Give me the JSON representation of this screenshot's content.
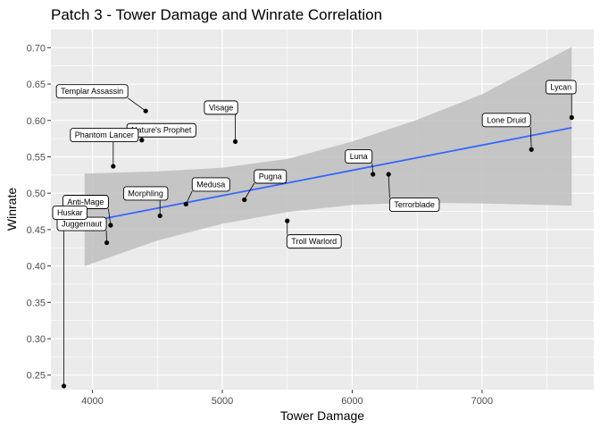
{
  "chart_data": {
    "type": "scatter",
    "title": "Patch 3  - Tower Damage and Winrate Correlation",
    "xlabel": "Tower Damage",
    "ylabel": "Winrate",
    "xlim": [
      3680,
      7860
    ],
    "ylim": [
      0.23,
      0.725
    ],
    "x_ticks": [
      4000,
      5000,
      6000,
      7000
    ],
    "x_tick_labels": [
      "4000",
      "5000",
      "6000",
      "7000"
    ],
    "y_ticks": [
      0.25,
      0.3,
      0.35,
      0.4,
      0.45,
      0.5,
      0.55,
      0.6,
      0.65,
      0.7
    ],
    "y_tick_labels": [
      "0.25",
      "0.30",
      "0.35",
      "0.40",
      "0.45",
      "0.50",
      "0.55",
      "0.60",
      "0.65",
      "0.70"
    ],
    "grid": true,
    "colors": {
      "panel": "#ebebeb",
      "grid": "#ffffff",
      "point": "#000000",
      "smooth_line": "#3366ff",
      "confidence_band": "#bebebe"
    },
    "regression": {
      "x": [
        3940,
        7690
      ],
      "y": [
        0.46,
        0.59
      ]
    },
    "confidence_band": {
      "x": [
        3940,
        4500,
        5000,
        5500,
        6000,
        6500,
        7000,
        7690
      ],
      "lower": [
        0.4,
        0.435,
        0.458,
        0.474,
        0.484,
        0.487,
        0.486,
        0.483
      ],
      "upper": [
        0.527,
        0.53,
        0.535,
        0.547,
        0.571,
        0.601,
        0.636,
        0.701
      ]
    },
    "points": [
      {
        "hero": "Templar Assassin",
        "x": 4410,
        "y": 0.613
      },
      {
        "hero": "Nature's Prophet",
        "x": 4380,
        "y": 0.573
      },
      {
        "hero": "Phantom Lancer",
        "x": 4160,
        "y": 0.537
      },
      {
        "hero": "Visage",
        "x": 5100,
        "y": 0.571
      },
      {
        "hero": "Medusa",
        "x": 4720,
        "y": 0.485
      },
      {
        "hero": "Pugna",
        "x": 5170,
        "y": 0.491
      },
      {
        "hero": "Anti-Mage",
        "x": 4140,
        "y": 0.456
      },
      {
        "hero": "Morphling",
        "x": 4520,
        "y": 0.469
      },
      {
        "hero": "Juggernaut",
        "x": 4110,
        "y": 0.432
      },
      {
        "hero": "Troll Warlord",
        "x": 5500,
        "y": 0.462
      },
      {
        "hero": "Luna",
        "x": 6160,
        "y": 0.526
      },
      {
        "hero": "Terrorblade",
        "x": 6280,
        "y": 0.526
      },
      {
        "hero": "Lone Druid",
        "x": 7380,
        "y": 0.56
      },
      {
        "hero": "Lycan",
        "x": 7690,
        "y": 0.604
      },
      {
        "hero": "Huskar",
        "x": 3780,
        "y": 0.235
      }
    ]
  }
}
